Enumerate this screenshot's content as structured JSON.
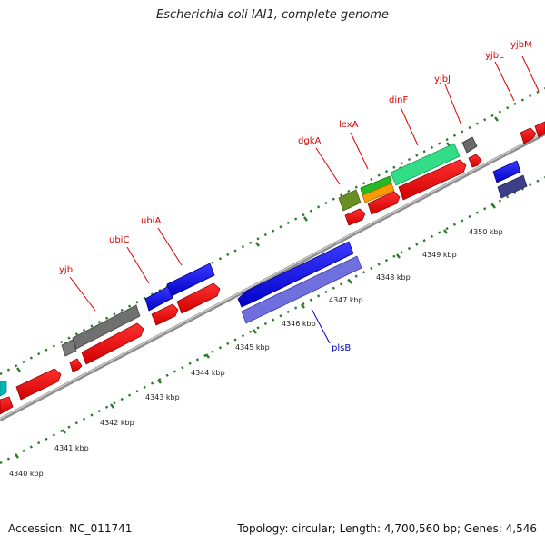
{
  "title": "Escherichia coli IAI1, complete genome",
  "footer": {
    "accession": "Accession: NC_011741",
    "stats": "Topology: circular; Length: 4,700,560 bp; Genes: 4,546"
  },
  "colors": {
    "backbone": "#8f8f8f",
    "tick": "#2c7a2c",
    "label_red": "#dd0000",
    "label_blue": "#0000cc"
  },
  "scale_labels": [
    "4340 kbp",
    "4341 kbp",
    "4342 kbp",
    "4343 kbp",
    "4344 kbp",
    "4345 kbp",
    "4346 kbp",
    "4347 kbp",
    "4348 kbp",
    "4349 kbp",
    "4350 kbp"
  ],
  "gene_labels": [
    {
      "name": "yjbI",
      "color": "#dd0000"
    },
    {
      "name": "ubiC",
      "color": "#dd0000"
    },
    {
      "name": "ubiA",
      "color": "#dd0000"
    },
    {
      "name": "dgkA",
      "color": "#dd0000"
    },
    {
      "name": "lexA",
      "color": "#dd0000"
    },
    {
      "name": "dinF",
      "color": "#dd0000"
    },
    {
      "name": "yjbJ",
      "color": "#dd0000"
    },
    {
      "name": "yjbL",
      "color": "#dd0000"
    },
    {
      "name": "yjbM",
      "color": "#dd0000"
    },
    {
      "name": "plsB",
      "color": "#0000cc"
    }
  ]
}
